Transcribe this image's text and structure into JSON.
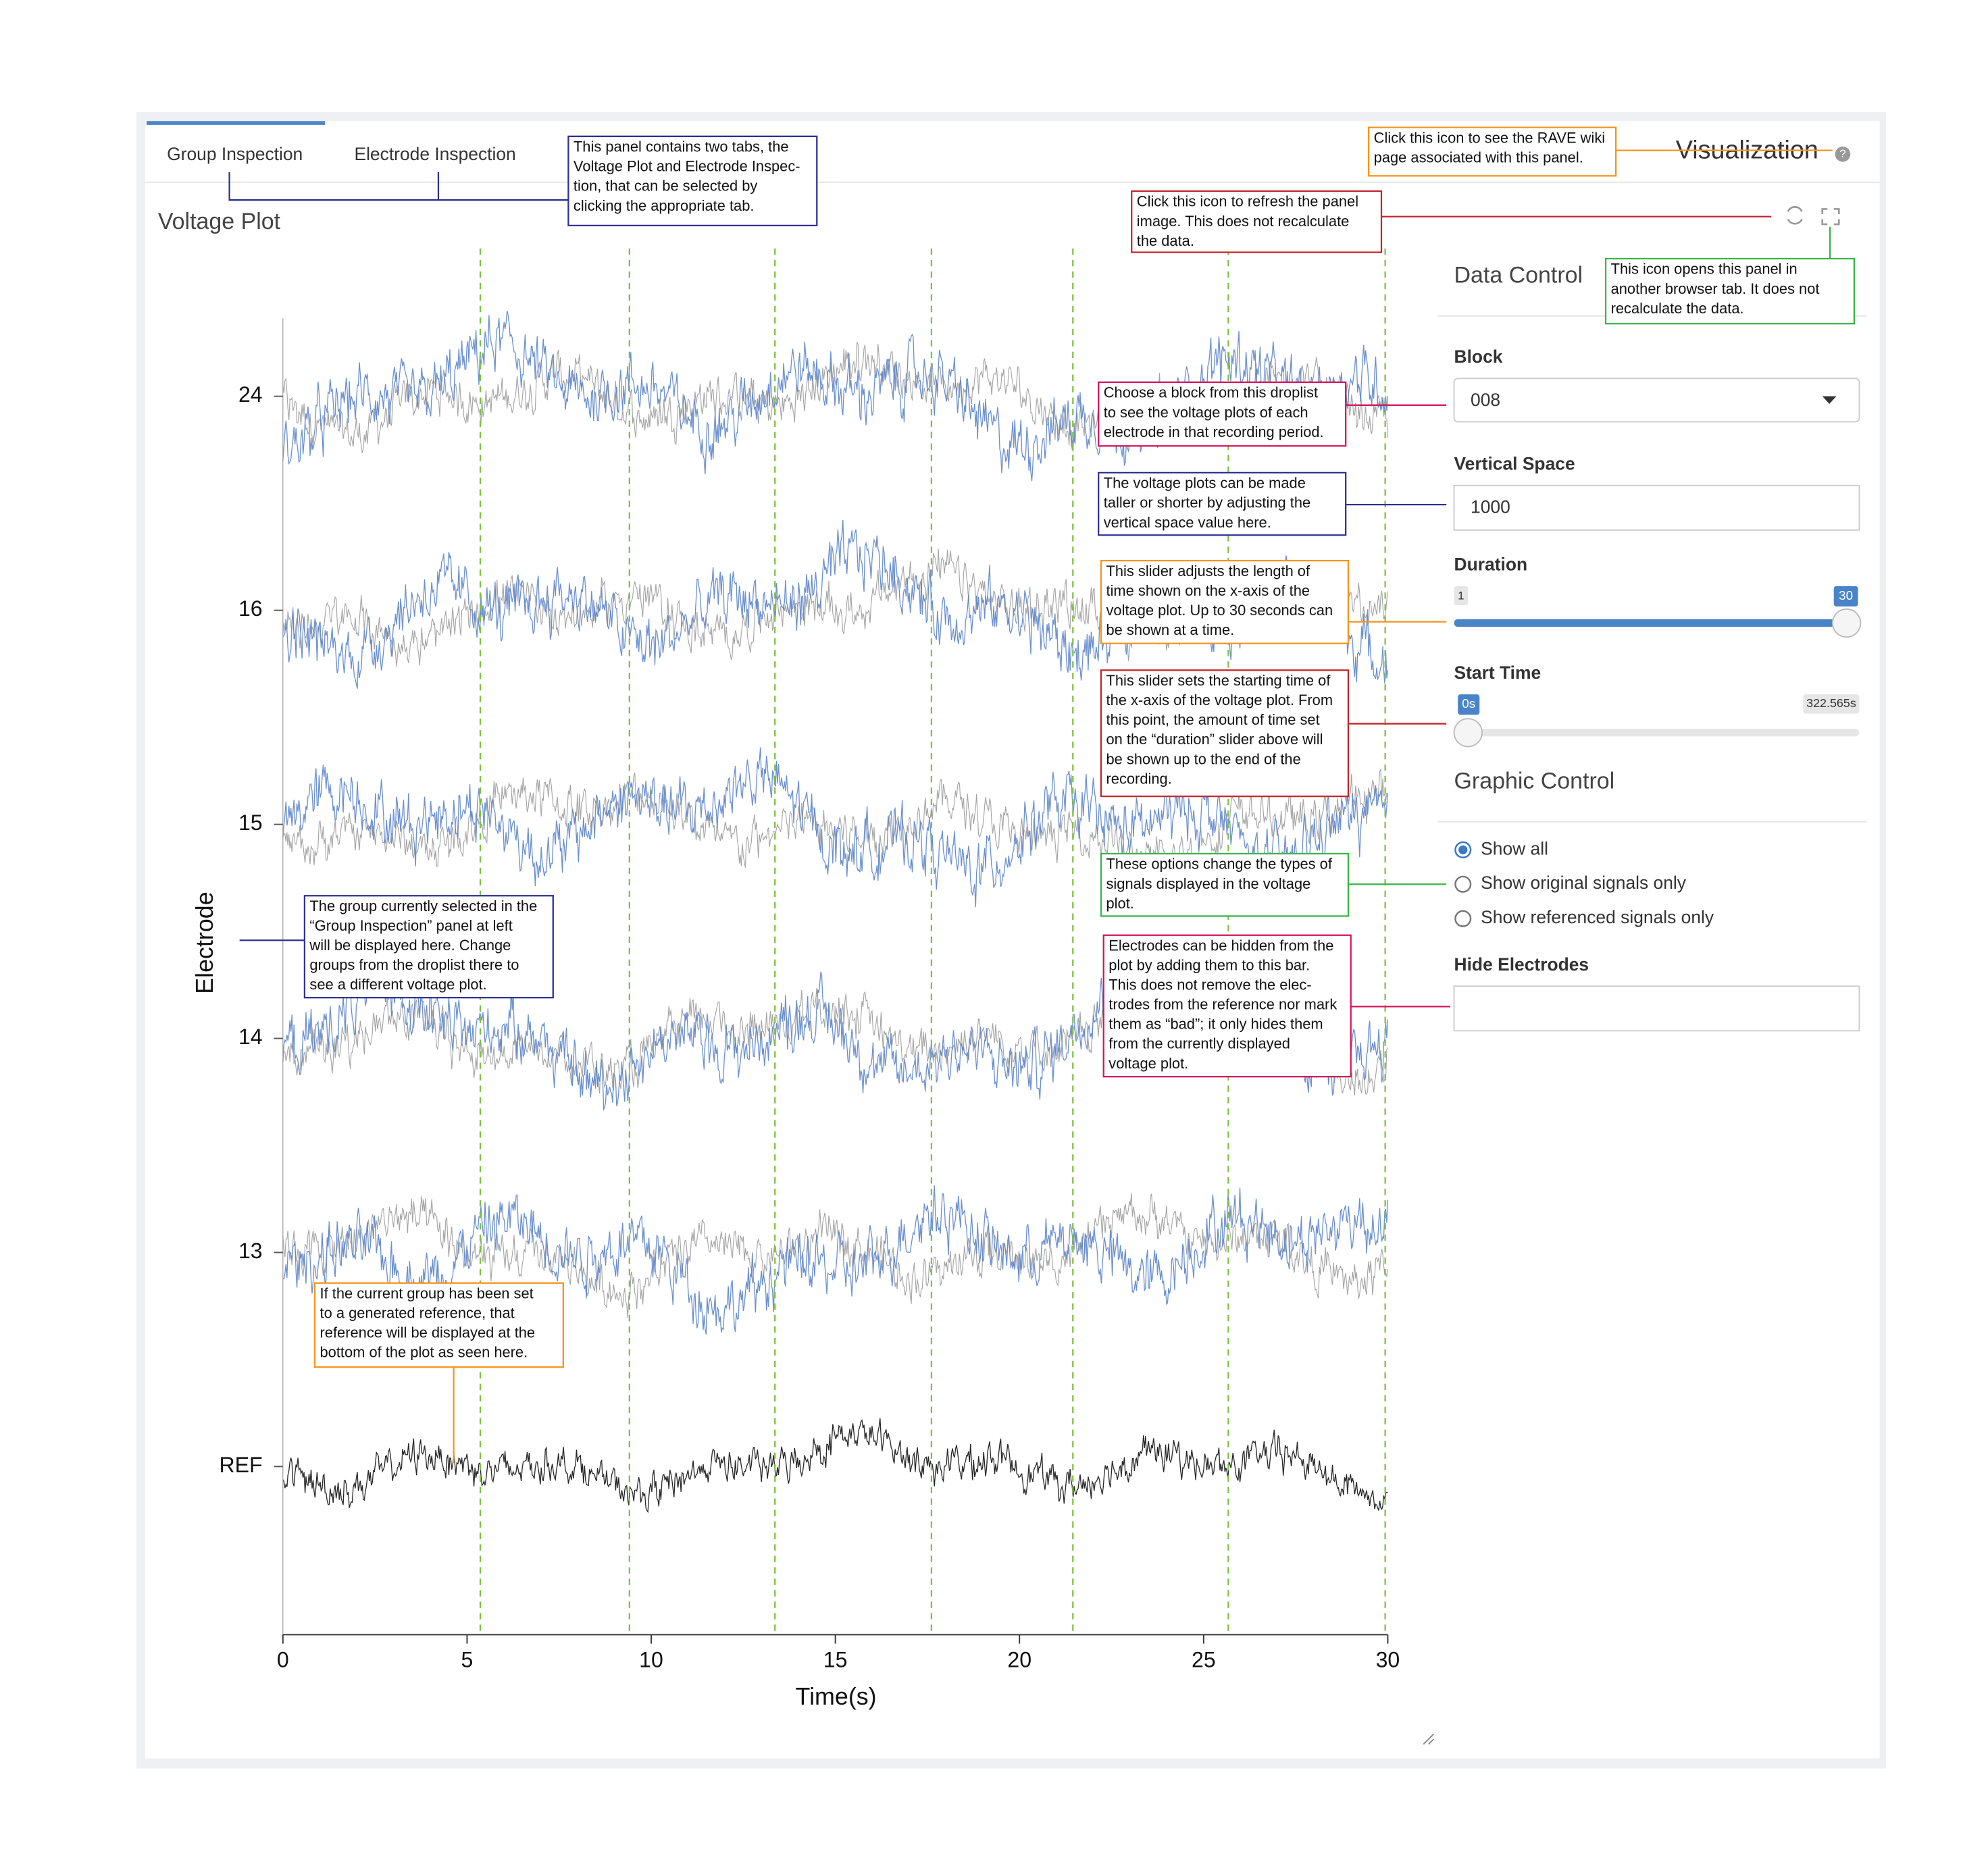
{
  "tabs": [
    "Group Inspection",
    "Electrode Inspection"
  ],
  "panel_title": "Voltage Plot",
  "header": {
    "title": "Visualization"
  },
  "plot": {
    "x_label": "Time(s)",
    "y_label": "Electrode",
    "xlim": [
      0,
      30
    ],
    "xticks": [
      0,
      5,
      10,
      15,
      20,
      25,
      30
    ],
    "y_categories": [
      "24",
      "16",
      "15",
      "14",
      "13",
      "REF"
    ],
    "marker_times": [
      5.36,
      9.41,
      13.36,
      17.61,
      21.45,
      25.67,
      29.93
    ]
  },
  "data_control": {
    "title": "Data Control",
    "block": {
      "label": "Block",
      "value": "008"
    },
    "vertical_space": {
      "label": "Vertical Space",
      "value": "1000"
    },
    "duration": {
      "label": "Duration",
      "min": 1,
      "value": 30
    },
    "start_time": {
      "label": "Start Time",
      "min_label": "0s",
      "max_label": "322.565s"
    }
  },
  "graphic_control": {
    "title": "Graphic Control",
    "options": [
      "Show all",
      "Show original signals only",
      "Show referenced signals only"
    ],
    "selected": 0,
    "hide_label": "Hide Electrodes"
  },
  "annotations": [
    {
      "color": "navy",
      "lines": [
        "This panel contains two tabs, the",
        "Voltage Plot and Electrode Inspec-",
        "tion, that can be selected by",
        "clicking the appropriate tab."
      ]
    },
    {
      "color": "orange",
      "lines": [
        "Click this icon to see the RAVE wiki",
        "page associated with this panel."
      ]
    },
    {
      "color": "red",
      "lines": [
        "Click this icon to refresh the panel",
        "image. This does not recalculate",
        "the data."
      ]
    },
    {
      "color": "green",
      "lines": [
        "This icon opens this panel in",
        "another browser tab. It does not",
        "recalculate the data."
      ]
    },
    {
      "color": "pink",
      "lines": [
        "Choose a block from this droplist",
        "to see the voltage plots of each",
        "electrode in that recording period."
      ]
    },
    {
      "color": "navy",
      "lines": [
        "The voltage plots can be made",
        "taller or shorter by adjusting the",
        "vertical space value here."
      ]
    },
    {
      "color": "orange",
      "lines": [
        "This slider adjusts the length of",
        "time shown on the x-axis of the",
        "voltage plot. Up to 30 seconds can",
        "be shown at a time."
      ]
    },
    {
      "color": "red",
      "lines": [
        "This slider sets the starting time of",
        "the x-axis of the voltage plot. From",
        "this point, the amount of time set",
        "on the “duration” slider above will",
        "be shown up to the end of the",
        "recording."
      ]
    },
    {
      "color": "green",
      "lines": [
        "These options change the types of",
        "signals displayed in the voltage",
        "plot."
      ]
    },
    {
      "color": "pink",
      "lines": [
        "Electrodes can be hidden from the",
        "plot by adding them to this bar.",
        "This does not remove the elec-",
        "trodes from the reference nor mark",
        "them as “bad”; it only hides them",
        "from the currently displayed",
        "voltage plot."
      ]
    },
    {
      "color": "navy",
      "lines": [
        "The group currently selected in the",
        "“Group Inspection” panel at left",
        "will be displayed here. Change",
        "groups from the droplist there to",
        "see a different voltage plot."
      ]
    },
    {
      "color": "orange",
      "lines": [
        "If the current group has been set",
        "to a generated reference, that",
        "reference will be displayed at the",
        "bottom of the plot as seen here."
      ]
    }
  ]
}
